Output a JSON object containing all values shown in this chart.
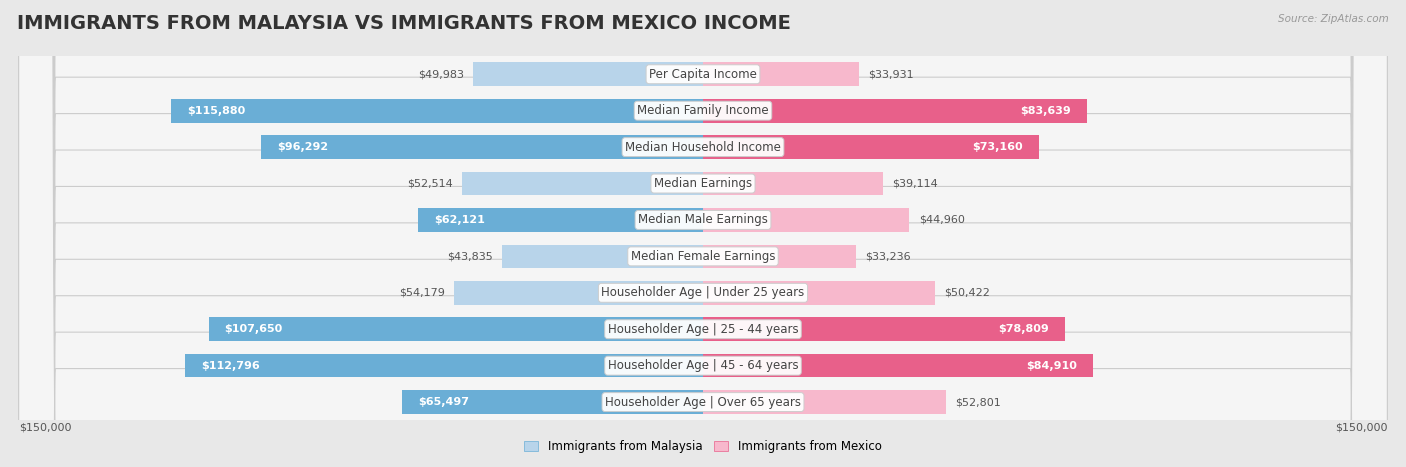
{
  "title": "IMMIGRANTS FROM MALAYSIA VS IMMIGRANTS FROM MEXICO INCOME",
  "source": "Source: ZipAtlas.com",
  "categories": [
    "Per Capita Income",
    "Median Family Income",
    "Median Household Income",
    "Median Earnings",
    "Median Male Earnings",
    "Median Female Earnings",
    "Householder Age | Under 25 years",
    "Householder Age | 25 - 44 years",
    "Householder Age | 45 - 64 years",
    "Householder Age | Over 65 years"
  ],
  "malaysia_values": [
    49983,
    115880,
    96292,
    52514,
    62121,
    43835,
    54179,
    107650,
    112796,
    65497
  ],
  "mexico_values": [
    33931,
    83639,
    73160,
    39114,
    44960,
    33236,
    50422,
    78809,
    84910,
    52801
  ],
  "malaysia_color_light": "#b8d4ea",
  "malaysia_color_dark": "#6aaed6",
  "mexico_color_light": "#f7b8cc",
  "mexico_color_dark": "#e8608a",
  "malaysia_label": "Immigrants from Malaysia",
  "mexico_label": "Immigrants from Mexico",
  "max_value": 150000,
  "bg_color": "#e8e8e8",
  "row_bg_color": "#f5f5f5",
  "title_fontsize": 14,
  "label_fontsize": 8.5,
  "value_fontsize": 8,
  "inside_threshold": 55000
}
